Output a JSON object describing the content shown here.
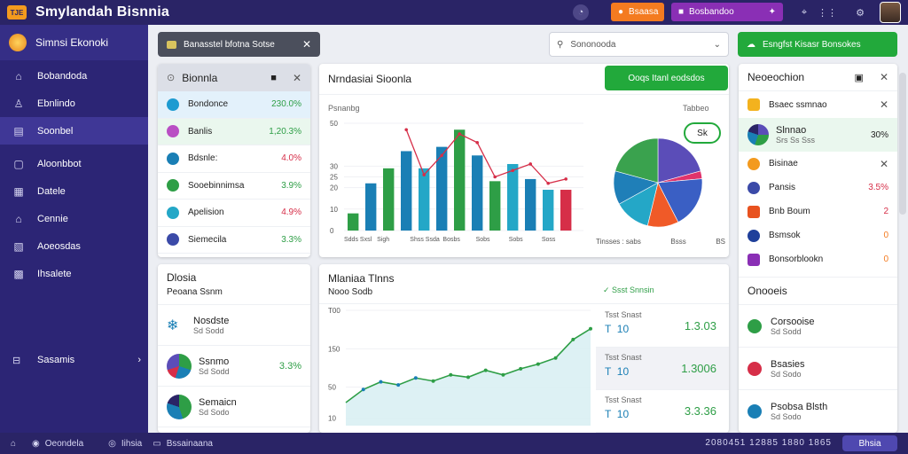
{
  "app": {
    "badge": "TJE",
    "title": "Smylandah Bisnnia"
  },
  "topbar": {
    "btn1": "Bsaasa",
    "btn2": "Bosbandoo"
  },
  "colors": {
    "accent": "#2a2466",
    "green": "#22a93b",
    "orange": "#f47b20",
    "purple": "#8a2fb5"
  },
  "sidebar": {
    "header": "Simnsi Ekonoki",
    "items": [
      {
        "label": "Bobandoda",
        "icon": "home-icon"
      },
      {
        "label": "Ebnlindo",
        "icon": "user-icon"
      },
      {
        "label": "Soonbel",
        "icon": "chart-icon",
        "active": true
      },
      {
        "label": "Aloonbbot",
        "icon": "info-icon"
      },
      {
        "label": "Datele",
        "icon": "table-icon"
      },
      {
        "label": "Cennie",
        "icon": "building-icon"
      },
      {
        "label": "Aoeosdas",
        "icon": "stats-icon"
      },
      {
        "label": "Ihsalete",
        "icon": "grid-icon"
      }
    ],
    "bottom": "Sasamis"
  },
  "toolbar": {
    "chip_label": "Banasstel bfotna Sotse",
    "search_placeholder": "Sononooda",
    "action_label": "Esngfst Kisasr Bonsokes"
  },
  "watchlist": {
    "title": "Bionnla",
    "rows": [
      {
        "name": "Bondonce",
        "value": "230.0%",
        "color": "#1d9bd1",
        "tone": "pos"
      },
      {
        "name": "Banlis",
        "value": "1,20.3%",
        "color": "#b94fc4",
        "tone": "pos"
      },
      {
        "name": "Bdsnle:",
        "value": "4.0%",
        "color": "#1a7fb5",
        "tone": "neg"
      },
      {
        "name": "Sooebinnimsa",
        "value": "3.9%",
        "color": "#2e9e46",
        "tone": "pos"
      },
      {
        "name": "Apelision",
        "value": "4.9%",
        "color": "#24a7c7",
        "tone": "neg"
      },
      {
        "name": "Siemecila",
        "value": "3.3%",
        "color": "#3b4aa8",
        "tone": "pos"
      }
    ]
  },
  "overview": {
    "title": "Nrndasiai Sioonla",
    "badge": "Ooqs Itanl eodsdos",
    "bar_label": "Psnanbg",
    "pie_label": "Tabbeo",
    "pie_badge": "Sk",
    "bar_ticks": [
      "0",
      "10",
      "20",
      "25",
      "30",
      "50"
    ],
    "bar_cats": [
      "Sdds Sxsl",
      "Sigh",
      "Shss Ssda",
      "Bosbs",
      "Sobs",
      "Sobs",
      "Soss"
    ],
    "pie_foot": [
      "Tinsses : sabs",
      "Bsss",
      "BS"
    ]
  },
  "bar_chart": {
    "type": "bar",
    "values": [
      8,
      22,
      29,
      37,
      29,
      39,
      47,
      35,
      23,
      31,
      24,
      19,
      19
    ],
    "colors": [
      "#2e9e46",
      "#1a7fb5",
      "#2e9e46",
      "#1a7fb5",
      "#24a7c7",
      "#1a7fb5",
      "#2e9e46",
      "#1a7fb5",
      "#2e9e46",
      "#24a7c7",
      "#1a7fb5",
      "#24a7c7",
      "#d62e48"
    ],
    "trend": [
      null,
      null,
      null,
      47,
      26,
      35,
      45,
      41,
      25,
      28,
      31,
      22,
      24
    ]
  },
  "pie_chart": {
    "type": "pie",
    "slices": [
      {
        "value": 22,
        "color": "#5b4db8"
      },
      {
        "value": 3,
        "color": "#e0336b"
      },
      {
        "value": 20,
        "color": "#3a5fc4"
      },
      {
        "value": 12,
        "color": "#f05a28"
      },
      {
        "value": 14,
        "color": "#24a7c7"
      },
      {
        "value": 13,
        "color": "#1f7fb8"
      },
      {
        "value": 22,
        "color": "#3aa24e"
      }
    ]
  },
  "positions": {
    "title": "Dlosia",
    "subtitle": "Peoana Ssnm",
    "rows": [
      {
        "name": "Nosdste",
        "sub": "Sd Sodd",
        "value": ""
      },
      {
        "name": "Ssnmo",
        "sub": "Sd Sodd",
        "value": "3.3%"
      },
      {
        "name": "Semaicn",
        "sub": "Sd Sodo",
        "value": ""
      }
    ]
  },
  "market": {
    "title": "Mlaniaa Tlnns",
    "subtitle": "Nooo Sodb",
    "status": "Ssst Snnsin",
    "y_ticks": [
      "T00",
      "150",
      "50",
      "10"
    ],
    "line": [
      30,
      47,
      57,
      53,
      62,
      58,
      66,
      63,
      72,
      66,
      74,
      80,
      88,
      112,
      126
    ]
  },
  "stats": [
    {
      "label": "Tsst Snast",
      "a": "T",
      "b": "10",
      "value": "1.3.03"
    },
    {
      "label": "Tsst Snast",
      "a": "T",
      "b": "10",
      "value": "1.3006"
    },
    {
      "label": "Tsst Snast",
      "a": "T",
      "b": "10",
      "value": "3.3.36"
    }
  ],
  "side": {
    "title": "Neoeochion",
    "tag": "Bsaec ssmnao",
    "rows": [
      {
        "name": "Slnnao",
        "sub": "Srs Ss Sss",
        "value": "30%"
      },
      {
        "name": "Bisinae",
        "value": ""
      },
      {
        "name": "Pansis",
        "value": "3.5%"
      },
      {
        "name": "Bnb Boum",
        "value": "2"
      },
      {
        "name": "Bsmsok",
        "value": "0"
      },
      {
        "name": "Bonsorblookn",
        "value": "0"
      }
    ],
    "section": "Onooeis",
    "section_rows": [
      {
        "name": "Corsooise",
        "sub": "Sd Sodd"
      },
      {
        "name": "Bsasies",
        "sub": "Sd Sodo"
      },
      {
        "name": "Psobsa Blsth",
        "sub": "Sd Sodo"
      }
    ]
  },
  "statusbar": {
    "item1": "Oeondela",
    "item2": "Iihsia",
    "item3": "Bssainaana",
    "right": "2080451 12885 1880 1865",
    "button": "Bhsia"
  }
}
